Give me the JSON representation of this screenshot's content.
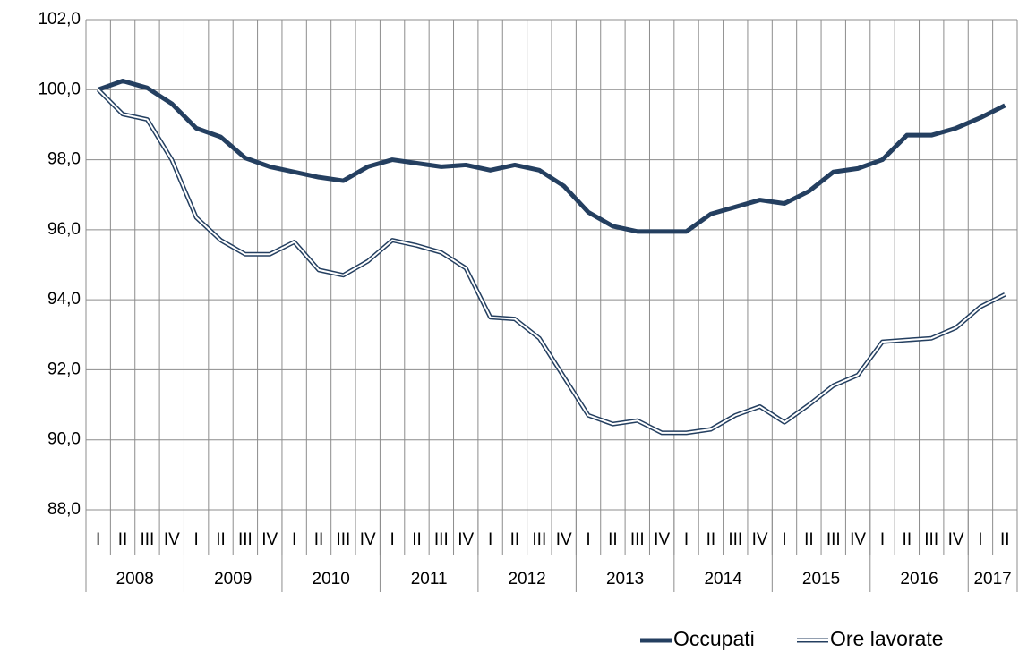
{
  "chart_data": {
    "type": "line",
    "categories": [
      "I",
      "II",
      "III",
      "IV",
      "I",
      "II",
      "III",
      "IV",
      "I",
      "II",
      "III",
      "IV",
      "I",
      "II",
      "III",
      "IV",
      "I",
      "II",
      "III",
      "IV",
      "I",
      "II",
      "III",
      "IV",
      "I",
      "II",
      "III",
      "IV",
      "I",
      "II",
      "III",
      "IV",
      "I",
      "II",
      "III",
      "IV",
      "I",
      "II"
    ],
    "years": [
      "2008",
      "2009",
      "2010",
      "2011",
      "2012",
      "2013",
      "2014",
      "2015",
      "2016",
      "2017"
    ],
    "series": [
      {
        "name": "Occupati",
        "color": "#243f60",
        "style": "solid",
        "values": [
          100.0,
          100.25,
          100.05,
          99.6,
          98.9,
          98.65,
          98.05,
          97.8,
          97.65,
          97.5,
          97.4,
          97.8,
          98.0,
          97.9,
          97.8,
          97.85,
          97.7,
          97.85,
          97.7,
          97.25,
          96.5,
          96.1,
          95.95,
          95.95,
          95.95,
          96.45,
          96.65,
          96.85,
          96.75,
          97.1,
          97.65,
          97.75,
          98.0,
          98.7,
          98.7,
          98.9,
          99.2,
          99.55
        ]
      },
      {
        "name": "Ore lavorate",
        "color": "#243f60",
        "style": "double",
        "values": [
          100.0,
          99.3,
          99.15,
          98.0,
          96.35,
          95.7,
          95.3,
          95.3,
          95.65,
          94.85,
          94.7,
          95.1,
          95.7,
          95.55,
          95.35,
          94.9,
          93.5,
          93.45,
          92.9,
          91.8,
          90.7,
          90.45,
          90.55,
          90.2,
          90.2,
          90.3,
          90.7,
          90.95,
          90.5,
          91.0,
          91.55,
          91.85,
          92.8,
          92.85,
          92.9,
          93.2,
          93.8,
          94.15
        ]
      }
    ],
    "ylim": [
      88,
      102
    ],
    "yticks": [
      {
        "value": 88,
        "label": "88,0"
      },
      {
        "value": 90,
        "label": "90,0"
      },
      {
        "value": 92,
        "label": "92,0"
      },
      {
        "value": 94,
        "label": "94,0"
      },
      {
        "value": 96,
        "label": "96,0"
      },
      {
        "value": 98,
        "label": "98,0"
      },
      {
        "value": 100,
        "label": "100,0"
      },
      {
        "value": 102,
        "label": "102,0"
      }
    ],
    "grid": true
  }
}
